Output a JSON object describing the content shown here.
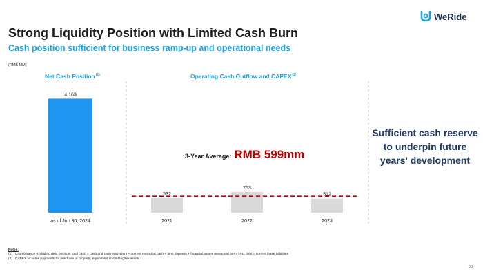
{
  "slide": {
    "title": "Strong Liquidity Position with Limited Cash Burn",
    "subtitle": "Cash position sufficient for business ramp-up and operational needs",
    "units": "(RMB MM)",
    "page_number": "22"
  },
  "logo": {
    "text": "WeRide",
    "color": "#1aa3e0"
  },
  "panels": {
    "left_title": "Net Cash Position",
    "left_note": "(1)",
    "right_title": "Operating Cash Outflow and CAPEX",
    "right_note": "(2)"
  },
  "average": {
    "label": "3-Year Average:",
    "value": "RMB 599mm"
  },
  "side_note": "Sufficient cash reserve to underpin future years' development",
  "notes": {
    "heading": "Notes:",
    "items": [
      {
        "num": "(1)",
        "text": "Cash balance excluding debt position, total cash = cash and cash equivalent + current restricted cash + time deposits + financial assets measured at FVTPL, debt = current lease liabilities"
      },
      {
        "num": "(2)",
        "text": "CAPEX includes payments for purchase of property, equipment and intangible assets"
      }
    ]
  },
  "chart_data": [
    {
      "type": "bar",
      "categories": [
        "as of Jun 30, 2024"
      ],
      "values": [
        4163
      ],
      "value_labels": [
        "4,163"
      ],
      "color": "#1e96f0",
      "ylim": [
        0,
        4500
      ]
    },
    {
      "type": "bar",
      "categories": [
        "2021",
        "2022",
        "2023"
      ],
      "values": [
        532,
        753,
        512
      ],
      "value_labels": [
        "532",
        "753",
        "512"
      ],
      "color": "#d9d9d9",
      "reference_line": {
        "value": 599,
        "style": "dashed",
        "color": "#c00000"
      },
      "ylim": [
        0,
        4500
      ]
    }
  ],
  "colors": {
    "accent": "#1aa3e0",
    "navy": "#1f3864",
    "red": "#c00000",
    "bar_blue": "#1e96f0",
    "bar_gray": "#d9d9d9"
  }
}
